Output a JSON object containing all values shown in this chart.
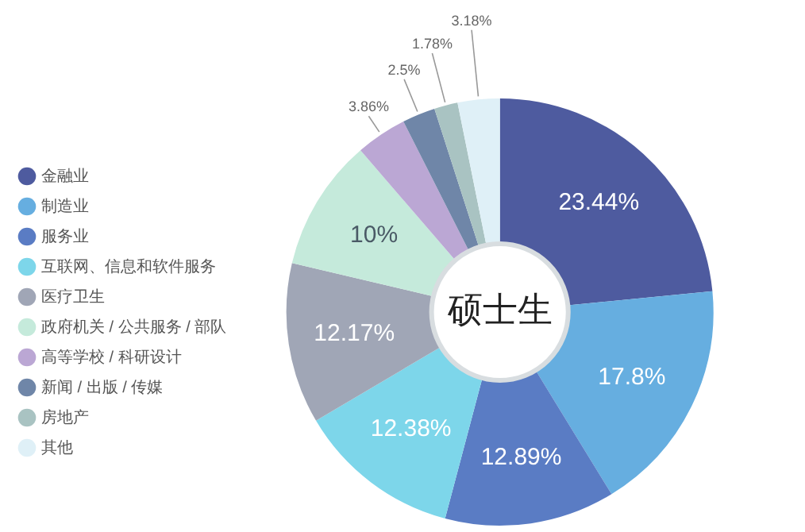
{
  "chart_data": {
    "type": "donut",
    "title": "硕士生",
    "categories": [
      "金融业",
      "制造业",
      "服务业",
      "互联网、信息和软件服务",
      "医疗卫生",
      "政府机关 / 公共服务 / 部队",
      "高等学校 / 科研设计",
      "新闻 / 出版 / 传媒",
      "房地产",
      "其他"
    ],
    "values": [
      23.44,
      17.8,
      12.89,
      12.38,
      12.17,
      10,
      3.86,
      2.5,
      1.78,
      3.18
    ],
    "value_labels": [
      "23.44%",
      "17.8%",
      "12.89%",
      "12.38%",
      "12.17%",
      "10%",
      "3.86%",
      "2.5%",
      "1.78%",
      "3.18%"
    ],
    "colors": [
      "#4e5b9f",
      "#66aee0",
      "#5a7cc4",
      "#7dd6ea",
      "#a0a6b6",
      "#c5eadb",
      "#bba7d4",
      "#6f86a8",
      "#a9c3c2",
      "#dff0f7"
    ],
    "legend": "left"
  }
}
